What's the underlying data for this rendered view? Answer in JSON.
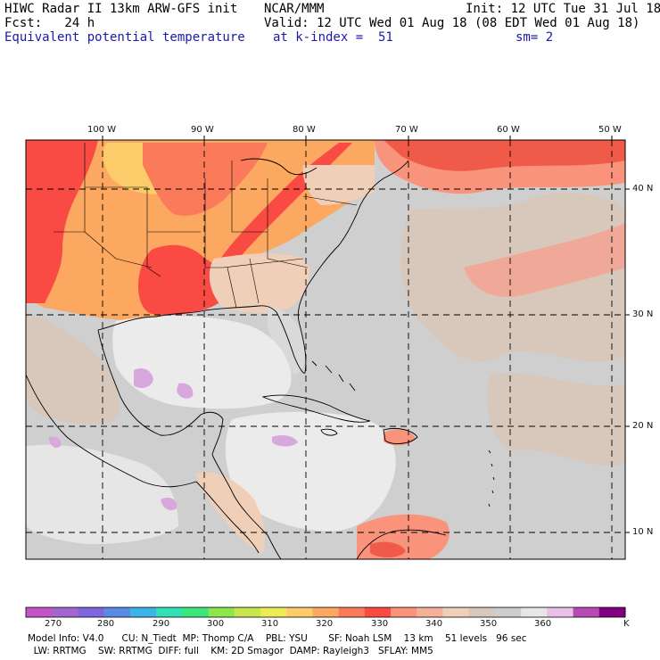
{
  "header": {
    "title": "HIWC Radar II 13km ARW-GFS init",
    "forecast": "Fcst:   24 h",
    "field": "Equivalent potential temperature",
    "center": "NCAR/MMM",
    "init": "Init: 12 UTC Tue 31 Jul 18",
    "valid": "Valid: 12 UTC Wed 01 Aug 18 (08 EDT Wed 01 Aug 18)",
    "level": "at k-index =  51",
    "smoothing": "sm= 2"
  },
  "map": {
    "longitude_labels": [
      "100 W",
      "90 W",
      "80 W",
      "70 W",
      "60 W",
      "50 W"
    ],
    "latitude_labels": [
      "40 N",
      "30 N",
      "20 N",
      "10 N"
    ]
  },
  "colorbar": {
    "unit": "K",
    "tick_labels": [
      "270",
      "280",
      "290",
      "300",
      "310",
      "320",
      "330",
      "340",
      "350",
      "360"
    ],
    "colors": [
      "#c455c9",
      "#a266cf",
      "#8066dc",
      "#5a8ce6",
      "#3cb4e6",
      "#32e0b4",
      "#3ce67a",
      "#8ce64c",
      "#c8e650",
      "#ecec55",
      "#fccc6a",
      "#fca860",
      "#fb7a5a",
      "#f94a44",
      "#f9937c",
      "#f5b09a",
      "#f0cfb8",
      "#d8c8bc",
      "#cdcdcd",
      "#e6e6e6",
      "#e8c0e8",
      "#b84ab4",
      "#800080"
    ]
  },
  "footer": {
    "line1": "Model Info: V4.0      CU: N_Tiedt  MP: Thomp C/A    PBL: YSU       SF: Noah LSM    13 km    51 levels   96 sec",
    "line2": "  LW: RRTMG    SW: RRTMG  DIFF: full    KM: 2D Smagor  DAMP: Rayleigh3   SFLAY: MM5"
  }
}
